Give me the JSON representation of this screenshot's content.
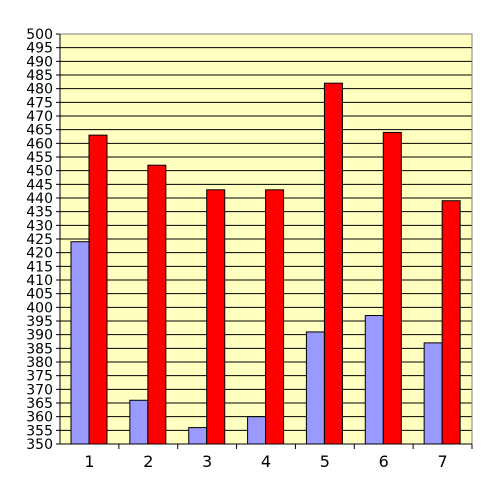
{
  "chart_data": {
    "type": "bar",
    "categories": [
      "1",
      "2",
      "3",
      "4",
      "5",
      "6",
      "7"
    ],
    "series": [
      {
        "values": [
          424,
          366,
          356,
          360,
          391,
          397,
          387
        ],
        "color": "#9999ff"
      },
      {
        "values": [
          463,
          452,
          443,
          443,
          482,
          464,
          439
        ],
        "color": "#ff0000"
      }
    ],
    "ylim": [
      350,
      500
    ],
    "ytick_step": 5,
    "grid": true,
    "plot_background": "#ffffc0",
    "legend": "none"
  }
}
